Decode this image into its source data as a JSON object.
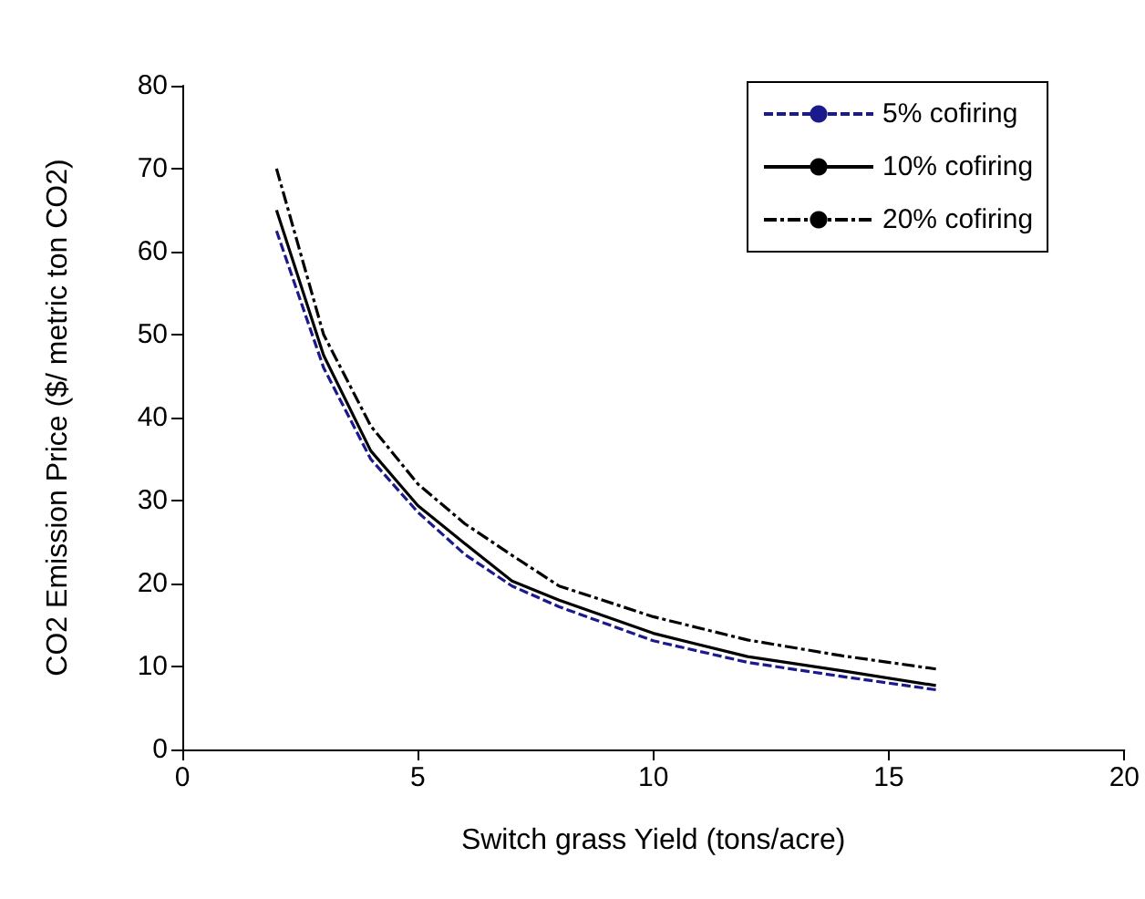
{
  "chart_data": {
    "type": "line",
    "xlabel": "Switch grass Yield (tons/acre)",
    "ylabel": "CO2 Emission Price ($/ metric ton CO2)",
    "x": [
      2,
      3,
      4,
      5,
      6,
      7,
      8,
      10,
      12,
      14,
      16
    ],
    "series": [
      {
        "name": "5% cofiring",
        "color": "#1a1a8c",
        "line_style": "dashed",
        "values": [
          62.5,
          46,
          35,
          28.6,
          23.5,
          19.7,
          17.2,
          13.1,
          10.5,
          8.8,
          7.2
        ]
      },
      {
        "name": "10% cofiring",
        "color": "#000000",
        "line_style": "solid",
        "values": [
          65,
          47.5,
          36,
          29.4,
          24.8,
          20.3,
          18,
          14,
          11.2,
          9.5,
          7.7
        ]
      },
      {
        "name": "20% cofiring",
        "color": "#000000",
        "line_style": "dashdot",
        "values": [
          70,
          50,
          39,
          32,
          27.2,
          23.4,
          19.7,
          16,
          13.2,
          11.3,
          9.7
        ]
      }
    ],
    "xlim": [
      0,
      20
    ],
    "xticks": [
      0,
      5,
      10,
      15,
      20
    ],
    "ylim": [
      0,
      80
    ],
    "yticks": [
      0,
      10,
      20,
      30,
      40,
      50,
      60,
      70,
      80
    ],
    "grid": false,
    "legend": "top right",
    "marker": "none"
  }
}
